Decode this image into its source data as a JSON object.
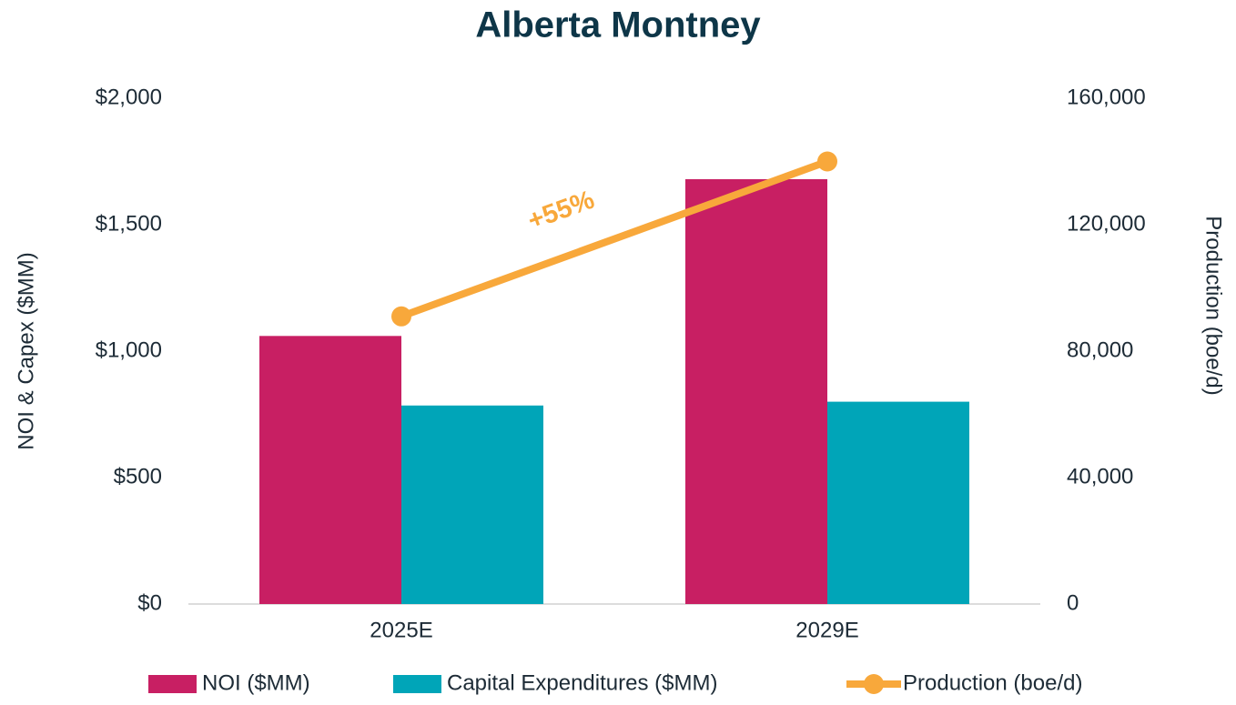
{
  "chart_data": {
    "type": "bar",
    "title": "Alberta Montney",
    "categories": [
      "2025E",
      "2029E"
    ],
    "series": [
      {
        "name": "NOI ($MM)",
        "color": "#c81f63",
        "values": [
          1060,
          1680
        ]
      },
      {
        "name": "Capital Expenditures ($MM)",
        "color": "#00a5b8",
        "values": [
          785,
          800
        ]
      },
      {
        "name": "Production (boe/d)",
        "color": "#f8a83b",
        "values": [
          91000,
          140000
        ],
        "axis": "y2",
        "type": "line"
      }
    ],
    "ylabel": "NOI & Capex ($MM)",
    "y2label": "Production (boe/d)",
    "ylim": [
      0,
      2000
    ],
    "yticks": [
      {
        "value": 0,
        "label": "$0"
      },
      {
        "value": 500,
        "label": "$500"
      },
      {
        "value": 1000,
        "label": "$1,000"
      },
      {
        "value": 1500,
        "label": "$1,500"
      },
      {
        "value": 2000,
        "label": "$2,000"
      }
    ],
    "y2lim": [
      0,
      160000
    ],
    "y2ticks": [
      0,
      {
        "value": 40000,
        "label": "40,000"
      },
      {
        "value": 80000,
        "label": "80,000"
      },
      {
        "value": 120000,
        "label": "120,000"
      },
      {
        "value": 160000,
        "label": "160,000"
      }
    ],
    "annotation": "+55%",
    "grid": false,
    "legend": "bottom"
  }
}
